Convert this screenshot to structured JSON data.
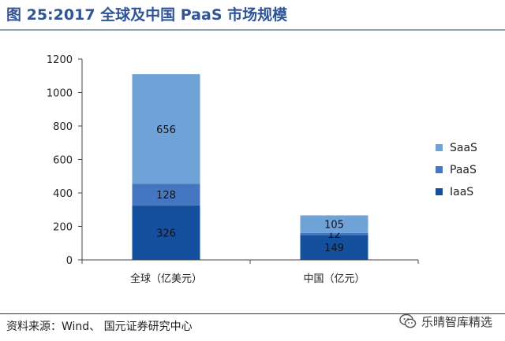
{
  "header": {
    "title": "图 25:2017 全球及中国 PaaS 市场规模"
  },
  "footer": {
    "source": "资料来源：Wind、 国元证券研究中心",
    "watermark": "乐晴智库精选",
    "watermark_icon": "wechat-icon"
  },
  "colors": {
    "SaaS": "#6fa2d6",
    "PaaS": "#4576c2",
    "IaaS": "#15509e"
  },
  "chart_data": {
    "type": "bar",
    "stacked": true,
    "categories": [
      "全球（亿美元）",
      "中国（亿元）"
    ],
    "series": [
      {
        "name": "IaaS",
        "values": [
          326,
          149
        ]
      },
      {
        "name": "PaaS",
        "values": [
          128,
          12
        ]
      },
      {
        "name": "SaaS",
        "values": [
          656,
          105
        ]
      }
    ],
    "ylim": [
      0,
      1200
    ],
    "yticks": [
      0,
      200,
      400,
      600,
      800,
      1000,
      1200
    ],
    "grid": false,
    "legend": "right"
  }
}
